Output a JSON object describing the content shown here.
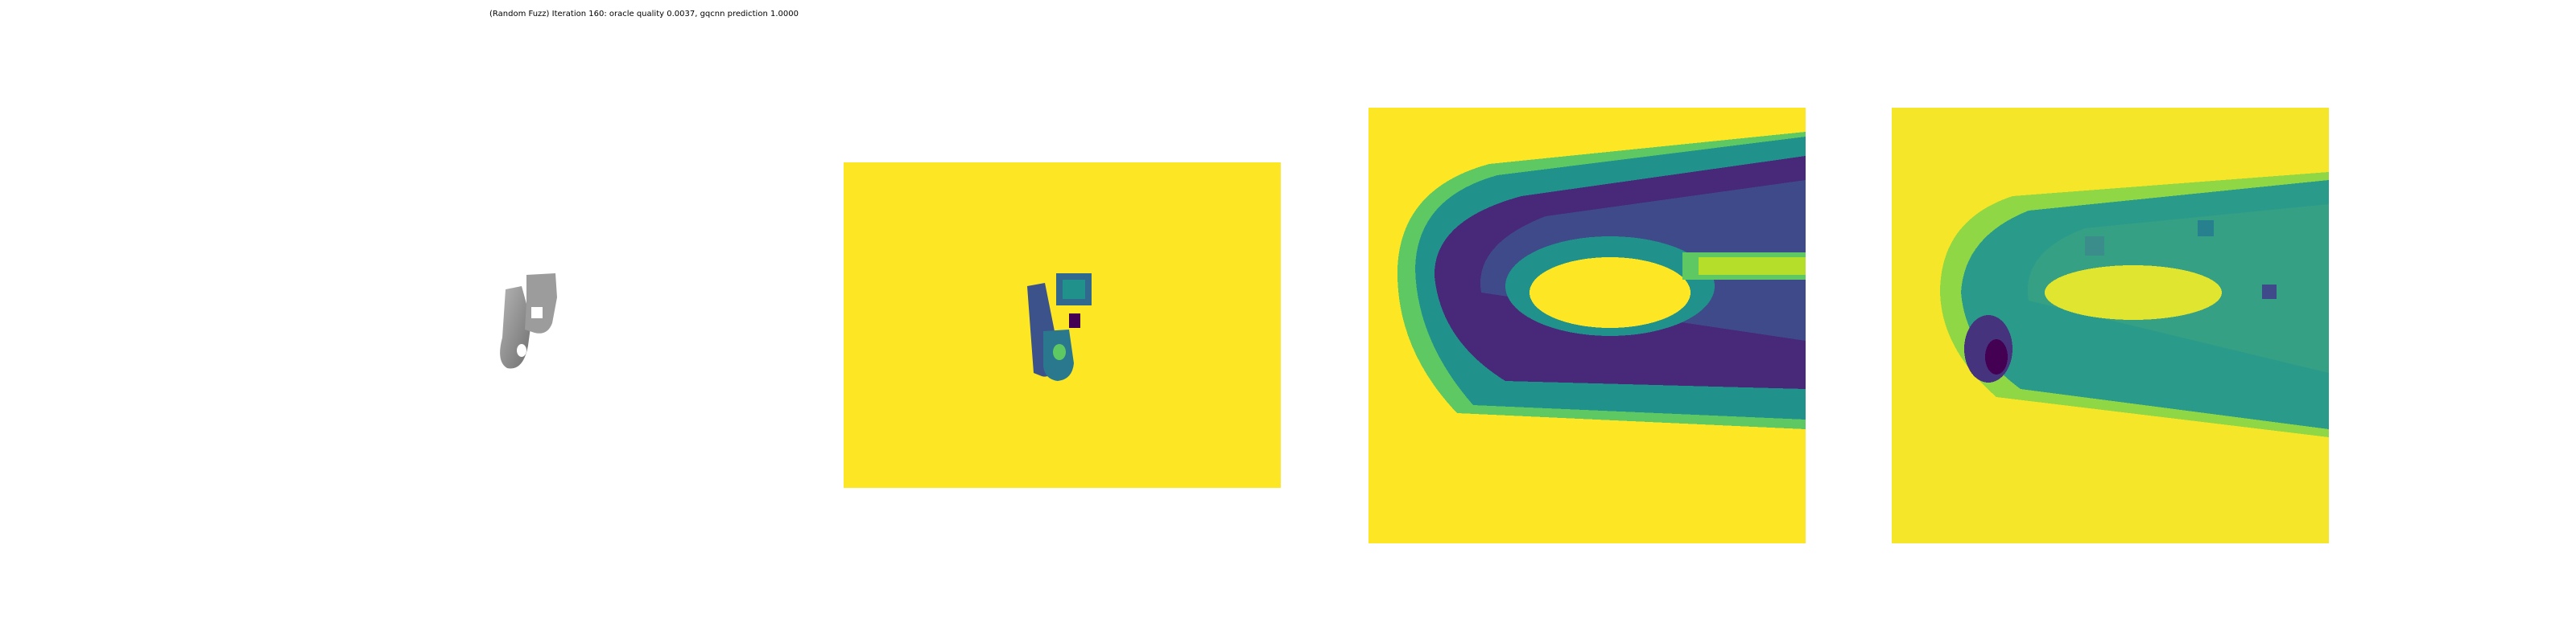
{
  "figure": {
    "title": "(Random Fuzz) Iteration 160: oracle quality 0.0037, gqcnn prediction 1.0000"
  },
  "chart_data": {
    "type": "heatmap",
    "title": "(Random Fuzz) Iteration 160: oracle quality 0.0037, gqcnn prediction 1.0000",
    "iteration": 160,
    "oracle_quality": 0.0037,
    "gqcnn_prediction": 1.0,
    "perturbation": "Random Fuzz",
    "panels": [
      {
        "id": "object-render",
        "kind": "3d-render",
        "colormap": "gray"
      },
      {
        "id": "depth-image",
        "kind": "heatmap",
        "colormap": "viridis"
      },
      {
        "id": "grasp-crop-original",
        "kind": "heatmap",
        "colormap": "viridis"
      },
      {
        "id": "grasp-crop-fuzzed",
        "kind": "heatmap",
        "colormap": "viridis"
      }
    ],
    "axes": "off",
    "grid": false
  },
  "colors": {
    "background": "#fde725",
    "dark": "#440154",
    "indigo": "#3b528b",
    "teal": "#21918c",
    "green": "#5ec962",
    "object_gray": "#8a8a8a"
  }
}
